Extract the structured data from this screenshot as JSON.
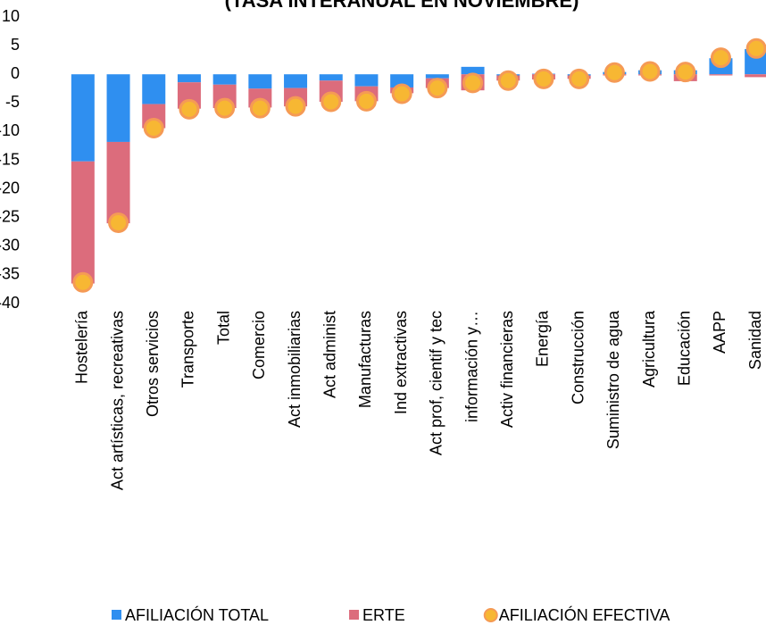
{
  "chart_data": {
    "type": "bar",
    "title": "(TASA INTERANUAL EN NOVIEMBRE)",
    "categories": [
      "Hostelería",
      "Act artísticas, recreativas",
      "Otros servicios",
      "Transporte",
      "Total",
      "Comercio",
      "Act inmobiliarias",
      "Act administ",
      "Manufacturas",
      "Ind extractivas",
      "Act prof, cientif y tec",
      "información y…",
      "Activ financieras",
      "Energía",
      "Construcción",
      "Suministro de agua",
      "Agricultura",
      "Educación",
      "AAPP",
      "Sanidad"
    ],
    "series": [
      {
        "name": "AFILIACIÓN TOTAL",
        "color": "#2f8ff0",
        "stack": true,
        "values": [
          -15.2,
          -11.8,
          -5.2,
          -1.4,
          -1.8,
          -2.5,
          -2.4,
          -1.1,
          -2.1,
          -2.3,
          -0.7,
          1.3,
          -0.2,
          0.1,
          -0.2,
          0.4,
          0.7,
          0.7,
          2.8,
          4.4
        ]
      },
      {
        "name": "ERTE",
        "color": "#dc6c7c",
        "stack": true,
        "values": [
          -21.3,
          -14.2,
          -4.2,
          -4.6,
          -4.1,
          -3.3,
          -3.2,
          -3.7,
          -2.6,
          -1.0,
          -1.7,
          -2.8,
          -0.9,
          -0.9,
          -0.6,
          -0.2,
          -0.2,
          -1.2,
          -0.2,
          -0.5
        ]
      },
      {
        "name": "AFILIACIÓN EFECTIVA",
        "color": "#f7b733",
        "stack": false,
        "values": [
          -36.3,
          -25.9,
          -9.4,
          -6.1,
          -5.9,
          -5.9,
          -5.6,
          -4.8,
          -4.7,
          -3.4,
          -2.4,
          -1.5,
          -1.1,
          -0.8,
          -0.8,
          0.3,
          0.5,
          0.4,
          2.9,
          4.5
        ]
      }
    ],
    "ylim": [
      10,
      -40
    ],
    "yticks": [
      10,
      5,
      0,
      -5,
      -10,
      -15,
      -20,
      -25,
      -30,
      -35,
      -40
    ],
    "grid": false,
    "legend": "bottom"
  }
}
